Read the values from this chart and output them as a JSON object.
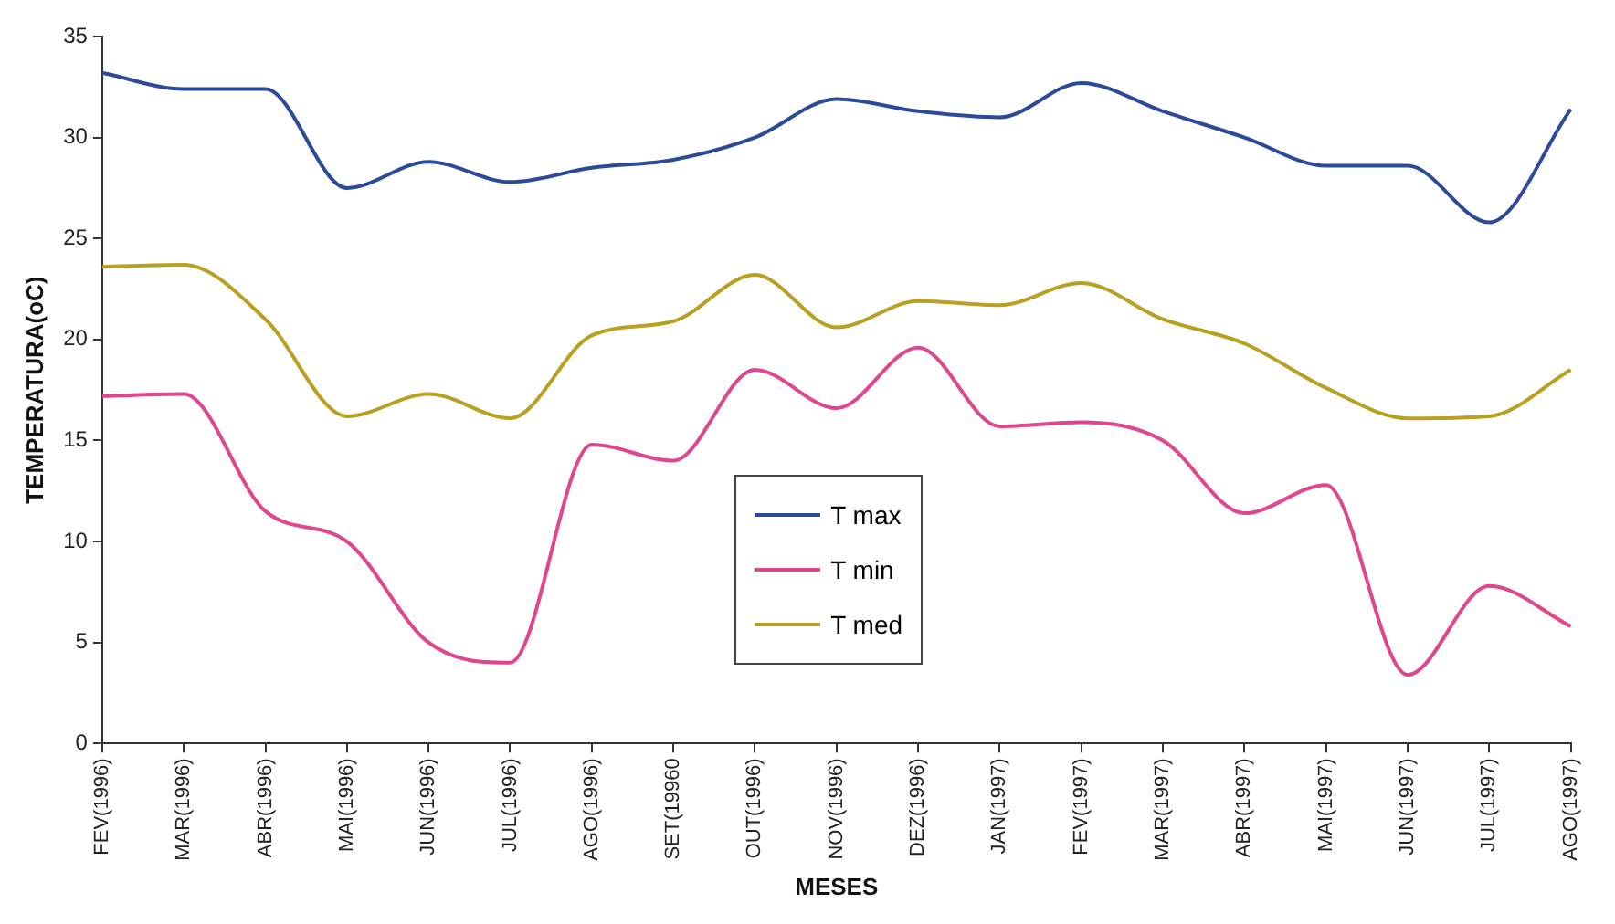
{
  "chart_data": {
    "type": "line",
    "xlabel": "MESES",
    "ylabel": "TEMPERATURA(oC)",
    "categories": [
      "FEV(1996)",
      "MAR(1996)",
      "ABR(1996)",
      "MAI(1996)",
      "JUN(1996)",
      "JUL(1996)",
      "AGO(1996)",
      "SET(19960",
      "OUT(1996)",
      "NOV(1996)",
      "DEZ(1996)",
      "JAN(1997)",
      "FEV(1997)",
      "MAR(1997)",
      "ABR(1997)",
      "MAI(1997)",
      "JUN(1997)",
      "JUL(1997)",
      "AGO(1997)"
    ],
    "series": [
      {
        "name": "T max",
        "color": "#2b4a9a",
        "values": [
          33.2,
          32.4,
          32.4,
          27.5,
          28.8,
          27.8,
          28.5,
          28.9,
          30.0,
          31.9,
          31.3,
          31.0,
          32.7,
          31.3,
          30.0,
          28.6,
          28.6,
          25.8,
          31.4
        ]
      },
      {
        "name": "T min",
        "color": "#e0458f",
        "values": [
          17.2,
          17.3,
          11.5,
          10.0,
          5.0,
          4.0,
          14.8,
          14.0,
          18.5,
          16.6,
          19.6,
          15.7,
          15.9,
          15.0,
          11.4,
          12.8,
          3.4,
          7.8,
          5.8
        ]
      },
      {
        "name": "T med",
        "color": "#b8a020",
        "values": [
          23.6,
          23.7,
          21.0,
          16.2,
          17.3,
          16.1,
          20.2,
          20.9,
          23.2,
          20.6,
          21.9,
          21.7,
          22.8,
          21.0,
          19.8,
          17.6,
          16.1,
          16.2,
          18.5
        ]
      }
    ],
    "ylim": [
      0,
      35
    ],
    "yticks": [
      0,
      5,
      10,
      15,
      20,
      25,
      30,
      35
    ],
    "grid": false,
    "legend": "center",
    "marker": "none",
    "line_style": "solid"
  }
}
